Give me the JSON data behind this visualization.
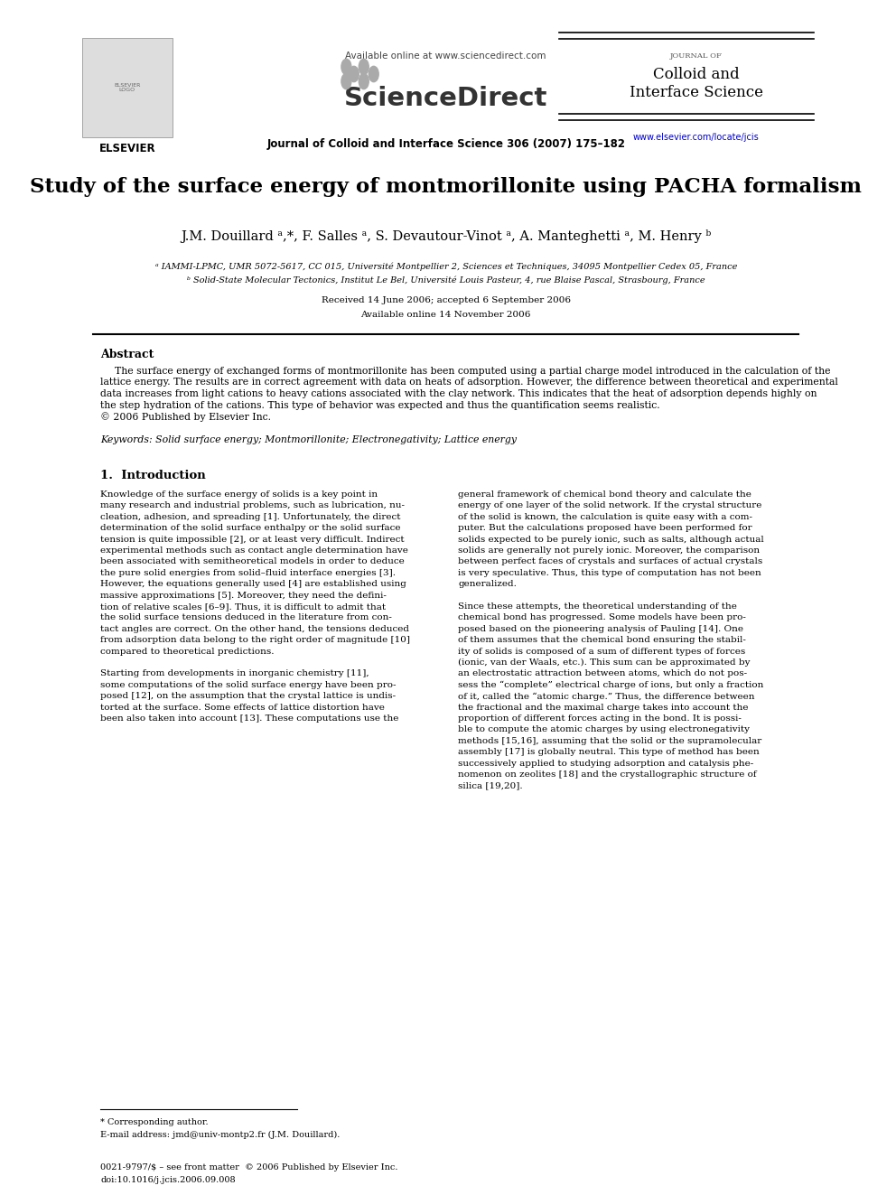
{
  "bg_color": "#ffffff",
  "title": "Study of the surface energy of montmorillonite using PACHA formalism",
  "authors": "J.M. Douillard ᵃ,*, F. Salles ᵃ, S. Devautour-Vinot ᵃ, A. Manteghetti ᵃ, M. Henry ᵇ",
  "affil_a": "ᵃ IAMMI-LPMC, UMR 5072-5617, CC 015, Université Montpellier 2, Sciences et Techniques, 34095 Montpellier Cedex 05, France",
  "affil_b": "ᵇ Solid-State Molecular Tectonics, Institut Le Bel, Université Louis Pasteur, 4, rue Blaise Pascal, Strasbourg, France",
  "received": "Received 14 June 2006; accepted 6 September 2006",
  "available": "Available online 14 November 2006",
  "journal_header": "Journal of Colloid and Interface Science 306 (2007) 175–182",
  "available_online": "Available online at www.sciencedirect.com",
  "journal_name_small": "JOURNAL OF",
  "journal_name_large1": "Colloid and",
  "journal_name_large2": "Interface Science",
  "journal_url": "www.elsevier.com/locate/jcis",
  "abstract_title": "Abstract",
  "abstract_lines": [
    "The surface energy of exchanged forms of montmorillonite has been computed using a partial charge model introduced in the calculation of the",
    "lattice energy. The results are in correct agreement with data on heats of adsorption. However, the difference between theoretical and experimental",
    "data increases from light cations to heavy cations associated with the clay network. This indicates that the heat of adsorption depends highly on",
    "the step hydration of the cations. This type of behavior was expected and thus the quantification seems realistic.",
    "© 2006 Published by Elsevier Inc."
  ],
  "keywords": "Keywords: Solid surface energy; Montmorillonite; Electronegativity; Lattice energy",
  "section1_title": "1.  Introduction",
  "col1_lines": [
    "Knowledge of the surface energy of solids is a key point in",
    "many research and industrial problems, such as lubrication, nu-",
    "cleation, adhesion, and spreading [1]. Unfortunately, the direct",
    "determination of the solid surface enthalpy or the solid surface",
    "tension is quite impossible [2], or at least very difficult. Indirect",
    "experimental methods such as contact angle determination have",
    "been associated with semitheoretical models in order to deduce",
    "the pure solid energies from solid–fluid interface energies [3].",
    "However, the equations generally used [4] are established using",
    "massive approximations [5]. Moreover, they need the defini-",
    "tion of relative scales [6–9]. Thus, it is difficult to admit that",
    "the solid surface tensions deduced in the literature from con-",
    "tact angles are correct. On the other hand, the tensions deduced",
    "from adsorption data belong to the right order of magnitude [10]",
    "compared to theoretical predictions.",
    "",
    "Starting from developments in inorganic chemistry [11],",
    "some computations of the solid surface energy have been pro-",
    "posed [12], on the assumption that the crystal lattice is undis-",
    "torted at the surface. Some effects of lattice distortion have",
    "been also taken into account [13]. These computations use the"
  ],
  "col2_lines": [
    "general framework of chemical bond theory and calculate the",
    "energy of one layer of the solid network. If the crystal structure",
    "of the solid is known, the calculation is quite easy with a com-",
    "puter. But the calculations proposed have been performed for",
    "solids expected to be purely ionic, such as salts, although actual",
    "solids are generally not purely ionic. Moreover, the comparison",
    "between perfect faces of crystals and surfaces of actual crystals",
    "is very speculative. Thus, this type of computation has not been",
    "generalized.",
    "",
    "Since these attempts, the theoretical understanding of the",
    "chemical bond has progressed. Some models have been pro-",
    "posed based on the pioneering analysis of Pauling [14]. One",
    "of them assumes that the chemical bond ensuring the stabil-",
    "ity of solids is composed of a sum of different types of forces",
    "(ionic, van der Waals, etc.). This sum can be approximated by",
    "an electrostatic attraction between atoms, which do not pos-",
    "sess the “complete” electrical charge of ions, but only a fraction",
    "of it, called the “atomic charge.” Thus, the difference between",
    "the fractional and the maximal charge takes into account the",
    "proportion of different forces acting in the bond. It is possi-",
    "ble to compute the atomic charges by using electronegativity",
    "methods [15,16], assuming that the solid or the supramolecular",
    "assembly [17] is globally neutral. This type of method has been",
    "successively applied to studying adsorption and catalysis phe-",
    "nomenon on zeolites [18] and the crystallographic structure of",
    "silica [19,20]."
  ],
  "footnote_star": "* Corresponding author.",
  "footnote_email": "E-mail address: jmd@univ-montp2.fr (J.M. Douillard).",
  "footer_issn": "0021-9797/$ – see front matter  © 2006 Published by Elsevier Inc.",
  "footer_doi": "doi:10.1016/j.jcis.2006.09.008",
  "sciencedirect_dots": [
    [
      375,
      82
    ],
    [
      388,
      74
    ],
    [
      401,
      82
    ],
    [
      388,
      90
    ],
    [
      365,
      74
    ],
    [
      365,
      90
    ]
  ]
}
